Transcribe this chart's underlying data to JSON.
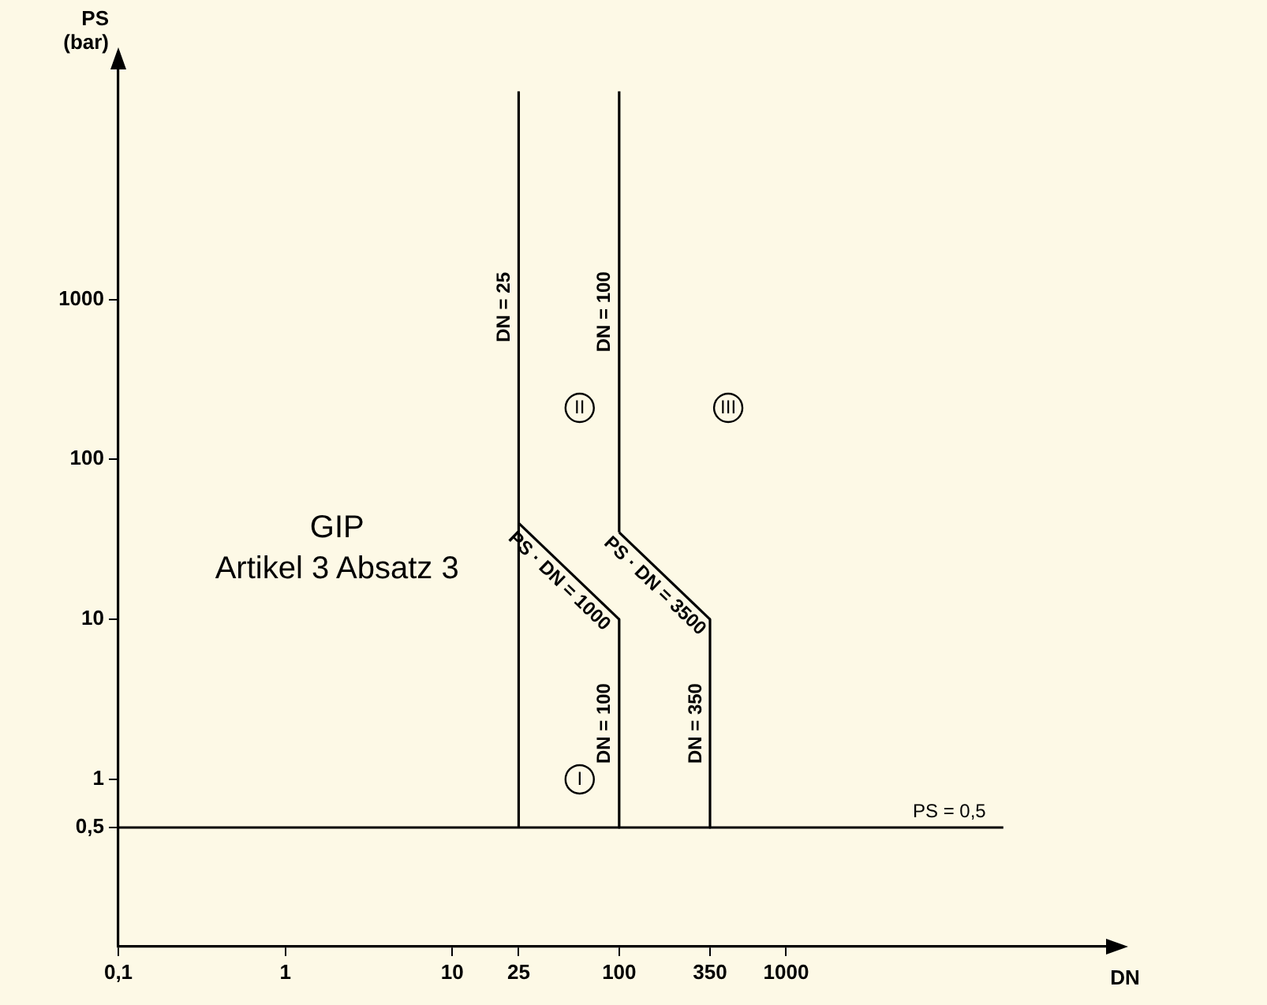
{
  "chart_data": {
    "type": "line",
    "xlabel": "DN",
    "ylabel": "PS\n(bar)",
    "log": "xy",
    "xlim": [
      0.1,
      90000
    ],
    "ylim": [
      0.09,
      30000
    ],
    "xticks": [
      {
        "value": 0.1,
        "label": "0,1"
      },
      1,
      10,
      25,
      100,
      350,
      1000
    ],
    "yticks": [
      {
        "value": 0.5,
        "label": "0,5"
      },
      1,
      10,
      100,
      1000
    ],
    "grid": false,
    "legend": false,
    "marker": "none",
    "line_style": "solid",
    "series": [
      {
        "name": "DN = 25",
        "color": "#000000",
        "x": [
          25,
          25,
          25
        ],
        "values": [
          0.5,
          40,
          20000
        ]
      },
      {
        "name": "PS · DN = 1000",
        "color": "#000000",
        "x": [
          25,
          100
        ],
        "values": [
          40,
          10
        ]
      },
      {
        "name": "DN = 100",
        "color": "#000000",
        "x": [
          100,
          100
        ],
        "values": [
          10,
          0.5
        ]
      },
      {
        "name": "DN = 100",
        "color": "#000000",
        "x": [
          100,
          100
        ],
        "values": [
          35,
          20000
        ]
      },
      {
        "name": "PS · DN = 3500",
        "color": "#000000",
        "x": [
          100,
          350
        ],
        "values": [
          35,
          10
        ]
      },
      {
        "name": "DN = 350",
        "color": "#000000",
        "x": [
          350,
          350
        ],
        "values": [
          10,
          0.5
        ]
      },
      {
        "color": "#000000",
        "x": [
          0.1,
          20000
        ],
        "values": [
          0.5,
          0.5
        ]
      }
    ],
    "annotations": [
      "GIP",
      "Artikel 3 Absatz 3",
      {
        "text": "I",
        "x": 58,
        "y": 1
      },
      {
        "text": "II",
        "x": 58,
        "y": 210
      },
      {
        "text": "III",
        "x": 450,
        "y": 210
      },
      {
        "text": "PS = 0,5",
        "x": 9500,
        "y": 0.5
      }
    ]
  }
}
